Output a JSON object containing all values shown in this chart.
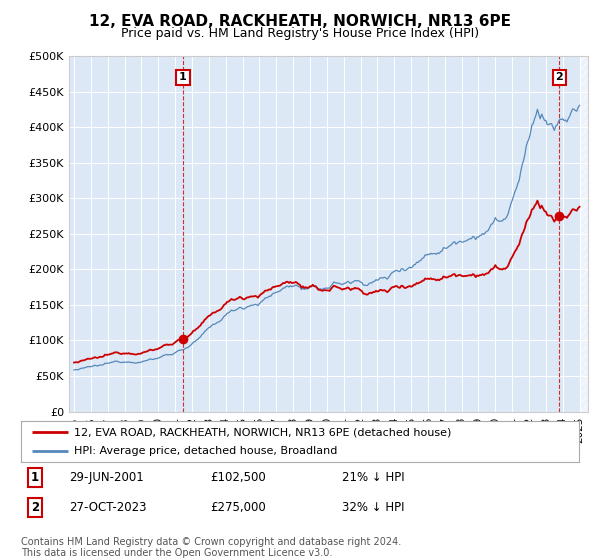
{
  "title": "12, EVA ROAD, RACKHEATH, NORWICH, NR13 6PE",
  "subtitle": "Price paid vs. HM Land Registry's House Price Index (HPI)",
  "ylabel_ticks": [
    "£0",
    "£50K",
    "£100K",
    "£150K",
    "£200K",
    "£250K",
    "£300K",
    "£350K",
    "£400K",
    "£450K",
    "£500K"
  ],
  "ytick_values": [
    0,
    50000,
    100000,
    150000,
    200000,
    250000,
    300000,
    350000,
    400000,
    450000,
    500000
  ],
  "xlim_start": 1994.7,
  "xlim_end": 2025.5,
  "ylim": [
    0,
    500000
  ],
  "legend_line1": "12, EVA ROAD, RACKHEATH, NORWICH, NR13 6PE (detached house)",
  "legend_line2": "HPI: Average price, detached house, Broadland",
  "annotation1_label": "1",
  "annotation1_date": "29-JUN-2001",
  "annotation1_price": "£102,500",
  "annotation1_hpi": "21% ↓ HPI",
  "annotation2_label": "2",
  "annotation2_date": "27-OCT-2023",
  "annotation2_price": "£275,000",
  "annotation2_hpi": "32% ↓ HPI",
  "footer": "Contains HM Land Registry data © Crown copyright and database right 2024.\nThis data is licensed under the Open Government Licence v3.0.",
  "hpi_color": "#5588bb",
  "price_color": "#cc0000",
  "marker_color": "#cc0000",
  "dashed_color": "#cc0000",
  "background_color": "#ffffff",
  "plot_bg_color": "#dce8f5",
  "annotation_box_color": "#cc0000",
  "hatch_color": "#bbbbbb",
  "grid_color": "#ffffff"
}
